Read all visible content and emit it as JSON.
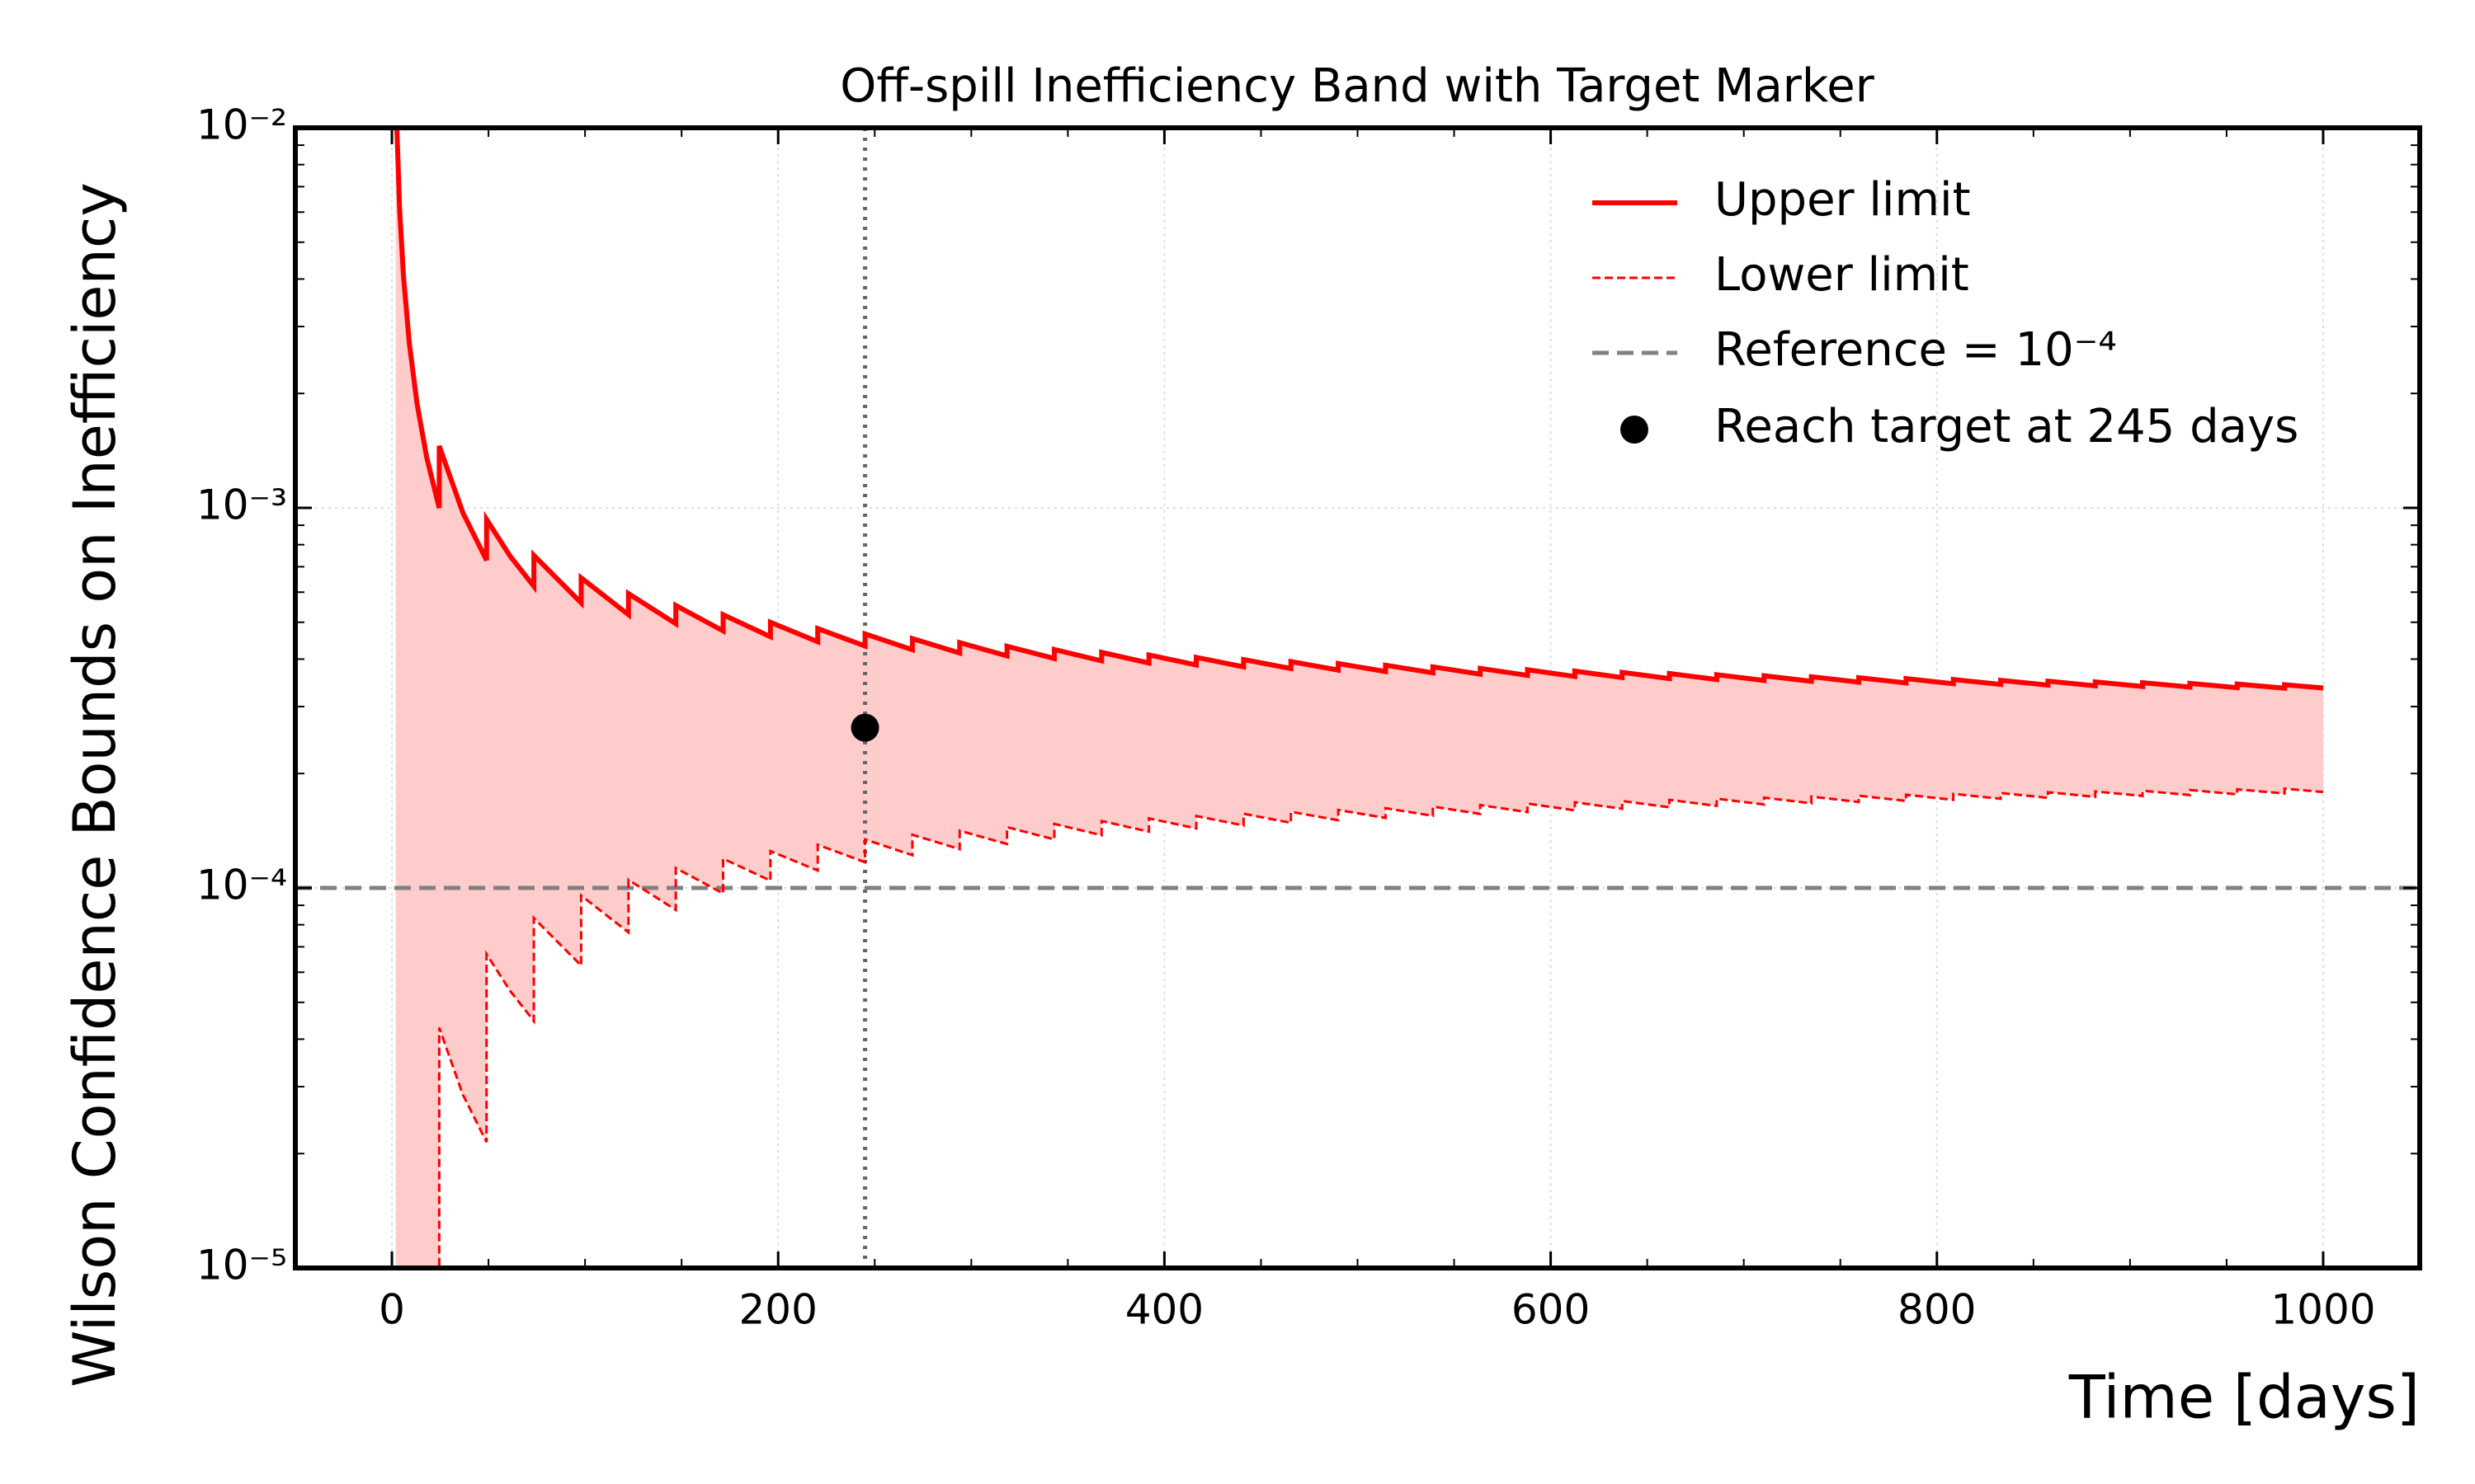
{
  "chart_data": {
    "type": "band",
    "title": "Off-spill Inefficiency Band with Target Marker",
    "xlabel": "Time [days]",
    "ylabel": "Wilson Confidence Bounds on Inefficiency",
    "xlim": [
      -50,
      1050
    ],
    "ylim": [
      1e-05,
      0.01
    ],
    "yscale": "log",
    "xticks": [
      0,
      200,
      400,
      600,
      800,
      1000
    ],
    "xminorticks": [
      50,
      100,
      150,
      250,
      300,
      350,
      450,
      500,
      550,
      650,
      700,
      750,
      850,
      900,
      950
    ],
    "yticks": [
      {
        "value": 1e-05,
        "label": "10⁻⁵"
      },
      {
        "value": 0.0001,
        "label": "10⁻⁴"
      },
      {
        "value": 0.001,
        "label": "10⁻³"
      },
      {
        "value": 0.01,
        "label": "10⁻²"
      }
    ],
    "yminorticks": [
      2e-05,
      3e-05,
      4e-05,
      5e-05,
      6e-05,
      7e-05,
      8e-05,
      9e-05,
      0.0002,
      0.0003,
      0.0004,
      0.0005,
      0.0006,
      0.0007,
      0.0008,
      0.0009,
      0.002,
      0.003,
      0.004,
      0.005,
      0.006,
      0.007,
      0.008,
      0.009
    ],
    "grid": true,
    "legend": "upper right",
    "fill_color": "#ffcccc",
    "x": [
      2,
      4,
      6,
      9,
      13,
      18,
      24.5,
      24.5,
      36.75,
      49,
      49,
      61.25,
      73.5,
      73.5,
      98,
      98,
      122.5,
      122.5,
      147,
      147,
      171.5,
      171.5,
      196,
      196,
      220.5,
      220.5,
      245,
      245,
      269.5,
      269.5,
      294,
      294,
      318.5,
      318.5,
      343,
      343,
      367.5,
      367.5,
      392,
      392,
      416.5,
      416.5,
      441,
      441,
      465.5,
      465.5,
      490,
      490,
      514.5,
      514.5,
      539,
      539,
      563.5,
      563.5,
      588,
      588,
      612.5,
      612.5,
      637,
      637,
      661.5,
      661.5,
      686,
      686,
      710.5,
      710.5,
      735,
      735,
      759.5,
      759.5,
      784,
      784,
      808.5,
      808.5,
      833,
      833,
      857.5,
      857.5,
      882,
      882,
      906.5,
      906.5,
      931,
      931,
      955.5,
      955.5,
      980,
      980,
      1000
    ],
    "series": [
      {
        "name": "Upper limit",
        "color": "#ff0000",
        "style": "solid",
        "values": [
          0.0121,
          0.00609,
          0.004067,
          0.002715,
          0.001881,
          0.001359,
          0.000999,
          0.0014556,
          0.0009708,
          0.0007282,
          0.0009325,
          0.0007461,
          0.0006218,
          0.0007498,
          0.0005624,
          0.0006543,
          0.0005235,
          0.0005948,
          0.0004957,
          0.0005537,
          0.0004746,
          0.0005234,
          0.000458,
          0.0004999,
          0.0004444,
          0.0004812,
          0.0004331,
          0.0004658,
          0.0004234,
          0.0004529,
          0.0004151,
          0.0004419,
          0.0004079,
          0.0004323,
          0.0004015,
          0.000424,
          0.0003957,
          0.0004166,
          0.0003906,
          0.0004101,
          0.000386,
          0.0004042,
          0.0003817,
          0.0003988,
          0.0003779,
          0.000394,
          0.0003743,
          0.0003895,
          0.000371,
          0.0003855,
          0.000368,
          0.0003817,
          0.0003651,
          0.0003782,
          0.0003625,
          0.000375,
          0.00036,
          0.000372,
          0.0003577,
          0.0003691,
          0.0003555,
          0.0003665,
          0.0003534,
          0.000364,
          0.0003515,
          0.0003617,
          0.0003496,
          0.0003595,
          0.0003479,
          0.0003574,
          0.0003462,
          0.0003554,
          0.0003446,
          0.0003535,
          0.0003431,
          0.0003517,
          0.0003417,
          0.00035,
          0.0003403,
          0.0003484,
          0.0003389,
          0.0003468,
          0.0003377,
          0.0003453,
          0.0003365,
          0.0003439,
          0.0003353,
          0.0003425,
          0.0003357
        ]
      },
      {
        "name": "Lower limit",
        "color": "#ff0000",
        "style": "dashed",
        "values": [
          0,
          0,
          0,
          0,
          0,
          0,
          0,
          4.289e-05,
          2.858e-05,
          2.144e-05,
          6.695e-05,
          5.357e-05,
          4.464e-05,
          8.331e-05,
          6.248e-05,
          9.547e-05,
          7.638e-05,
          0.000105,
          8.753e-05,
          0.0001128,
          9.672e-05,
          0.0001194,
          0.0001045,
          0.00012498,
          0.0001111,
          0.00012986,
          0.00011687,
          0.00013416,
          0.00012196,
          0.000138,
          0.0001265,
          0.0001414,
          0.0001305,
          0.0001445,
          0.0001342,
          0.0001474,
          0.0001376,
          0.00015,
          0.0001406,
          0.0001524,
          0.0001434,
          0.0001546,
          0.000146,
          0.0001567,
          0.0001484,
          0.0001586,
          0.0001507,
          0.0001604,
          0.0001528,
          0.0001621,
          0.0001548,
          0.0001637,
          0.0001566,
          0.0001652,
          0.0001583,
          0.0001667,
          0.00016,
          0.000168,
          0.0001616,
          0.0001693,
          0.000163,
          0.0001705,
          0.0001644,
          0.0001717,
          0.0001658,
          0.0001728,
          0.000167,
          0.0001739,
          0.0001683,
          0.0001749,
          0.0001694,
          0.0001759,
          0.0001705,
          0.0001768,
          0.0001716,
          0.0001777,
          0.0001726,
          0.0001786,
          0.0001736,
          0.0001794,
          0.0001746,
          0.0001802,
          0.0001755,
          0.000181,
          0.0001763,
          0.0001817,
          0.0001772,
          0.0001825,
          0.0001788
        ]
      }
    ],
    "hline": {
      "name": "Reference = 10⁻⁴",
      "value": 0.0001,
      "color": "#808080"
    },
    "vline": {
      "value": 245,
      "color": "#666666"
    },
    "point": {
      "name": "Reach target at 245 days",
      "x": 245,
      "y": 0.000264,
      "color": "#000000"
    }
  }
}
